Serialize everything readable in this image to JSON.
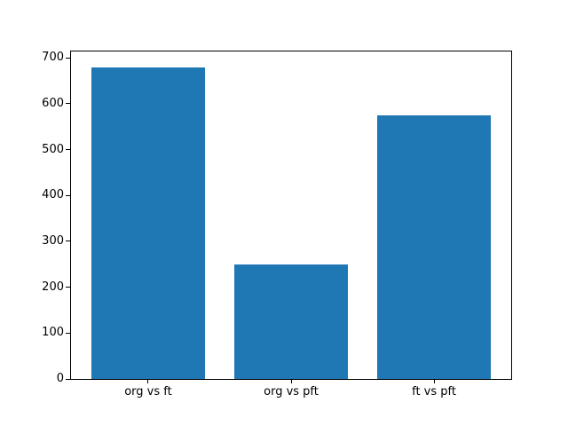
{
  "chart_data": {
    "type": "bar",
    "title": "",
    "xlabel": "",
    "ylabel": "",
    "categories": [
      "org vs ft",
      "org vs pft",
      "ft vs pft"
    ],
    "values": [
      680,
      250,
      575
    ],
    "yticks": [
      0,
      100,
      200,
      300,
      400,
      500,
      600,
      700
    ],
    "ylim": [
      0,
      714
    ],
    "xlim": [
      -0.54,
      2.54
    ],
    "bar_width": 0.8,
    "bar_color": "#1f77b4",
    "spine_color": "#000000",
    "text_color": "#000000",
    "background": "#ffffff",
    "grid": false,
    "legend": false
  }
}
